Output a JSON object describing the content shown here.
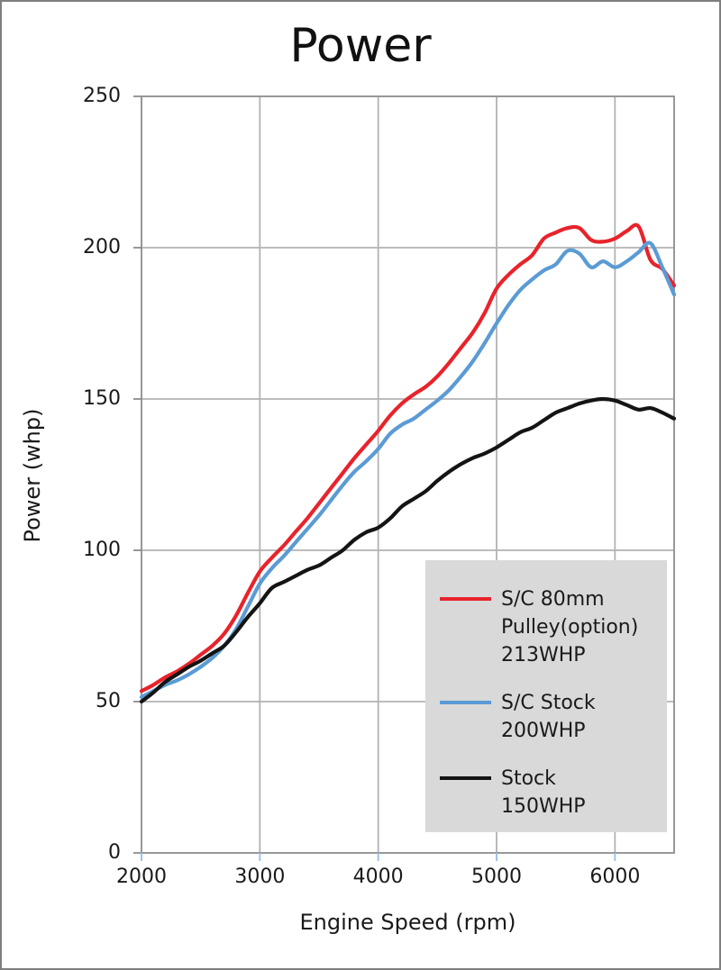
{
  "chart_data": {
    "type": "line",
    "title": "Power",
    "xlabel": "Engine Speed (rpm)",
    "ylabel": "Power (whp)",
    "xlim": [
      2000,
      6500
    ],
    "ylim": [
      0,
      250
    ],
    "xticks": [
      2000,
      3000,
      4000,
      5000,
      6000
    ],
    "yticks": [
      0,
      50,
      100,
      150,
      200,
      250
    ],
    "grid": true,
    "legend_position": "bottom-right",
    "x": [
      2000,
      2100,
      2200,
      2300,
      2400,
      2500,
      2600,
      2700,
      2800,
      2900,
      3000,
      3100,
      3200,
      3300,
      3400,
      3500,
      3600,
      3700,
      3800,
      3900,
      4000,
      4100,
      4200,
      4300,
      4400,
      4500,
      4600,
      4700,
      4800,
      4900,
      5000,
      5100,
      5200,
      5300,
      5400,
      5500,
      5600,
      5700,
      5800,
      5900,
      6000,
      6100,
      6200,
      6300,
      6400,
      6500
    ],
    "series": [
      {
        "name": "S/C 80mm Pulley(option) 213WHP",
        "legend_lines": [
          "S/C 80mm",
          "Pulley(option)",
          "213WHP"
        ],
        "color": "#e8232b",
        "values": [
          53.5,
          55.5,
          58,
          60,
          62.5,
          65.5,
          68.5,
          72.5,
          78.5,
          86,
          93,
          97.5,
          101.5,
          106,
          110.5,
          115.5,
          120.5,
          125.5,
          130.5,
          135,
          139.5,
          144.5,
          148.5,
          151.5,
          154,
          157.5,
          162,
          167,
          172,
          178.5,
          186.5,
          191,
          194.5,
          197.5,
          203,
          205,
          206.5,
          206.5,
          202.5,
          202,
          203,
          205.5,
          207,
          196,
          193,
          187.5
        ]
      },
      {
        "name": "S/C Stock 200WHP",
        "legend_lines": [
          "S/C Stock",
          "200WHP"
        ],
        "color": "#5b9bd5",
        "values": [
          51.5,
          53.5,
          55.5,
          57,
          59,
          61.5,
          64.5,
          68.5,
          74,
          81.5,
          89,
          94,
          98,
          102.5,
          107,
          111.5,
          116.5,
          121.5,
          126,
          129.5,
          133.5,
          138.5,
          141.5,
          143.5,
          146.5,
          149.5,
          153,
          157.5,
          162.5,
          168.5,
          175,
          181,
          186,
          189.5,
          192.5,
          194.5,
          199,
          198,
          193.5,
          195.5,
          193.5,
          195.5,
          198.5,
          201.5,
          193.5,
          184.5
        ]
      },
      {
        "name": "Stock 150WHP",
        "legend_lines": [
          "Stock",
          "150WHP"
        ],
        "color": "#141414",
        "values": [
          50,
          53,
          56.5,
          59,
          61.5,
          63.5,
          66,
          68.5,
          73,
          78,
          82.5,
          87.5,
          89.5,
          91.5,
          93.5,
          95,
          97.5,
          100,
          103.5,
          106,
          107.5,
          110.5,
          114.5,
          117,
          119.5,
          123,
          126,
          128.5,
          130.5,
          132,
          134,
          136.5,
          139,
          140.5,
          143,
          145.5,
          147,
          148.5,
          149.5,
          150,
          149.5,
          148,
          146.5,
          147,
          145.5,
          143.5
        ]
      }
    ],
    "colors": {
      "background": "#ffffff",
      "frame_border": "#7f7f7f",
      "axis": "#8c8c8c",
      "grid": "#b3b3b3",
      "x_tick_mark": "#9dc3e6",
      "legend_background": "#d9d9d9",
      "text": "#1a1a1a"
    }
  }
}
